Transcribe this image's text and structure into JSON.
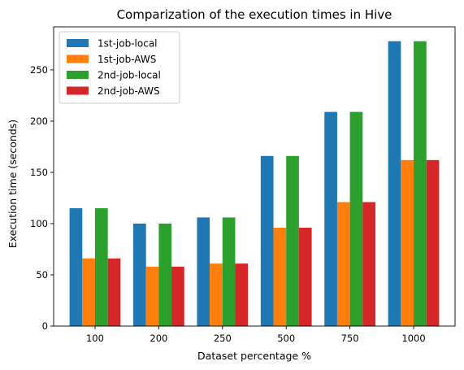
{
  "chart_data": {
    "type": "bar",
    "title": "Comparization of the execution times in Hive",
    "xlabel": "Dataset percentage %",
    "ylabel": "Execution time (seconds)",
    "categories": [
      "100",
      "200",
      "250",
      "500",
      "750",
      "1000"
    ],
    "ylim": [
      0,
      292
    ],
    "yticks": [
      0,
      50,
      100,
      150,
      200,
      250
    ],
    "grid": false,
    "legend_position": "top-left",
    "series": [
      {
        "name": "1st-job-local",
        "color": "#1f77b4",
        "values": [
          115,
          100,
          106,
          166,
          209,
          278
        ]
      },
      {
        "name": "1st-job-AWS",
        "color": "#ff7f0e",
        "values": [
          66,
          58,
          61,
          96,
          121,
          162
        ]
      },
      {
        "name": "2nd-job-local",
        "color": "#2ca02c",
        "values": [
          115,
          100,
          106,
          166,
          209,
          278
        ]
      },
      {
        "name": "2nd-job-AWS",
        "color": "#d62728",
        "values": [
          66,
          58,
          61,
          96,
          121,
          162
        ]
      }
    ]
  }
}
